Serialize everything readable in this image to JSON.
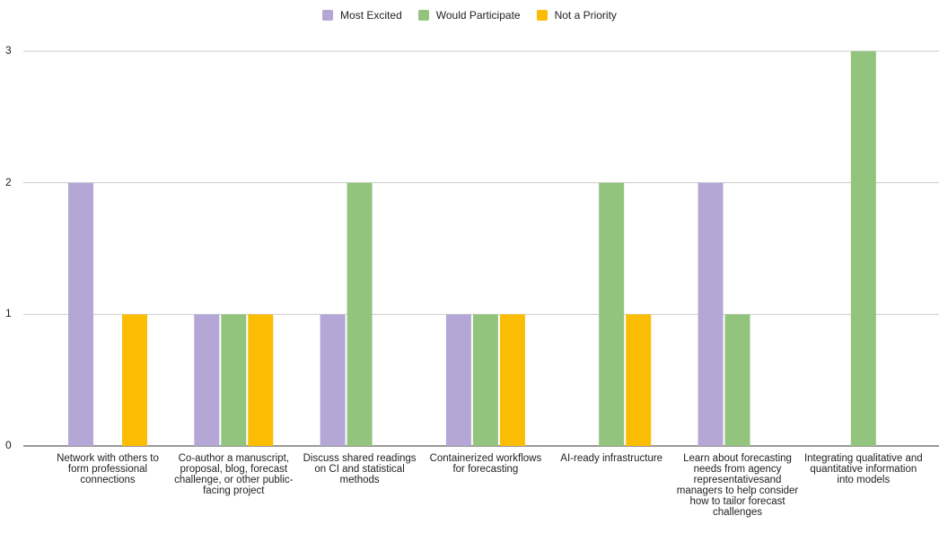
{
  "chart_data": {
    "type": "bar",
    "categories": [
      "Network with others to form professional connections",
      "Co-author a manuscript, proposal, blog, forecast challenge, or other public-facing project",
      "Discuss shared readings on CI and statistical methods",
      "Containerized workflows for forecasting",
      "AI-ready infrastructure",
      "Learn about forecasting needs from agency representativesand managers to help consider how to tailor forecast challenges",
      "Integrating qualitative and quantitative information into models"
    ],
    "series": [
      {
        "name": "Most Excited",
        "color": "#b4a7d6",
        "values": [
          2,
          1,
          1,
          1,
          0,
          2,
          0
        ]
      },
      {
        "name": "Would Participate",
        "color": "#93c47d",
        "values": [
          0,
          1,
          2,
          1,
          2,
          1,
          3
        ]
      },
      {
        "name": "Not a Priority",
        "color": "#fbbc04",
        "values": [
          1,
          1,
          0,
          1,
          1,
          0,
          0
        ]
      }
    ],
    "yticks": [
      "0",
      "1",
      "2",
      "3"
    ],
    "ylim": [
      0,
      3
    ],
    "grid": true,
    "legend_position": "top"
  }
}
